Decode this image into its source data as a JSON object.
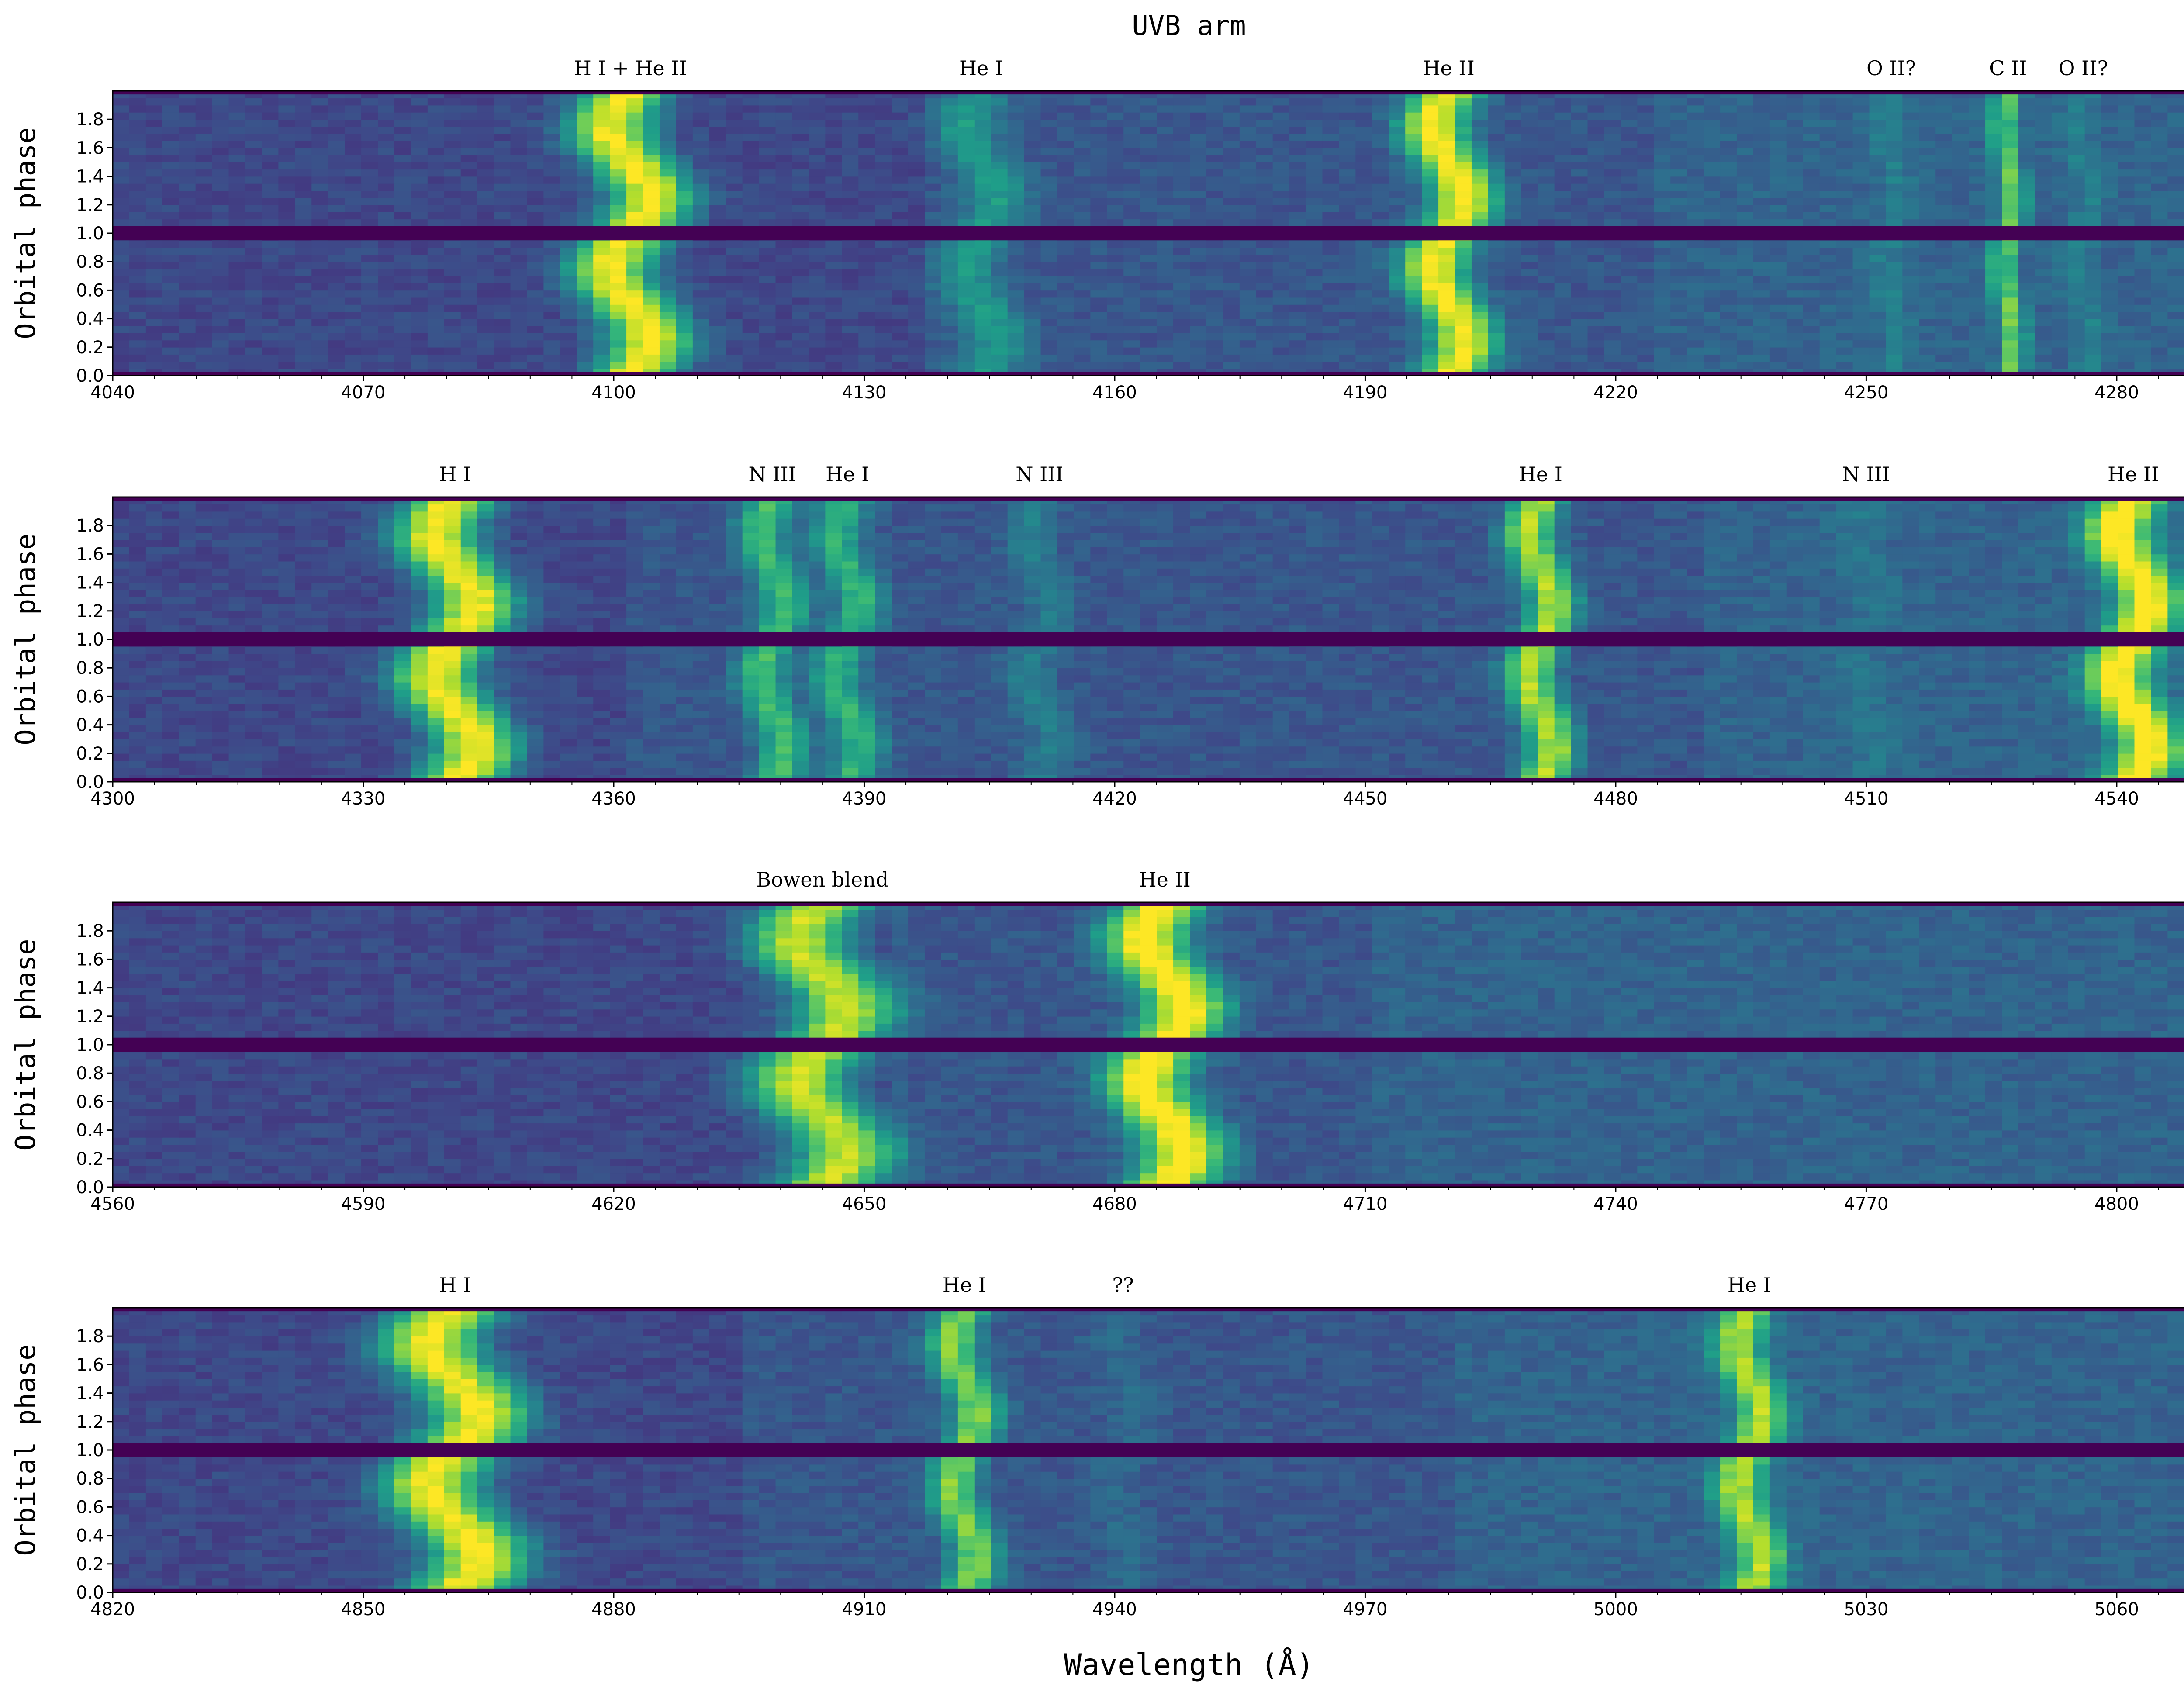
{
  "figure": {
    "title": "UVB arm",
    "xlabel": "Wavelength (Å)",
    "ylabel": "Orbital phase"
  },
  "colors": {
    "colormap": "viridis",
    "background": "#ffffff",
    "gap_band": "#440154"
  },
  "chart_data": [
    {
      "type": "heatmap",
      "xlim": [
        4040,
        4298
      ],
      "ylim": [
        0.0,
        2.0
      ],
      "xticks": [
        "4040",
        "4070",
        "4100",
        "4130",
        "4160",
        "4190",
        "4220",
        "4250",
        "4280"
      ],
      "yticks": [
        "0.0",
        "0.2",
        "0.4",
        "0.6",
        "0.8",
        "1.0",
        "1.2",
        "1.4",
        "1.6",
        "1.8"
      ],
      "segment_breaks": [
        4137,
        4225
      ],
      "lines": [
        {
          "label": "H I + He II",
          "x": 4102,
          "strength": 1.0,
          "width": 5
        },
        {
          "label": "He I",
          "x": 4144,
          "strength": 0.35,
          "width": 4
        },
        {
          "label": "He II",
          "x": 4200,
          "strength": 0.95,
          "width": 4
        },
        {
          "label": "O II?",
          "x": 4253,
          "strength": 0.15,
          "width": 2
        },
        {
          "label": "C II",
          "x": 4267,
          "strength": 0.6,
          "width": 1.5
        },
        {
          "label": "O II?",
          "x": 4276,
          "strength": 0.15,
          "width": 2
        }
      ]
    },
    {
      "type": "heatmap",
      "xlim": [
        4300,
        4558
      ],
      "ylim": [
        0.0,
        2.0
      ],
      "xticks": [
        "4300",
        "4330",
        "4360",
        "4390",
        "4420",
        "4450",
        "4480",
        "4510",
        "4540"
      ],
      "yticks": [
        "0.0",
        "0.2",
        "0.4",
        "0.6",
        "0.8",
        "1.0",
        "1.2",
        "1.4",
        "1.6",
        "1.8"
      ],
      "segment_breaks": [
        4362,
        4491
      ],
      "lines": [
        {
          "label": "H I",
          "x": 4341,
          "strength": 1.0,
          "width": 5
        },
        {
          "label": "N III",
          "x": 4379,
          "strength": 0.55,
          "width": 3
        },
        {
          "label": "He I",
          "x": 4388,
          "strength": 0.5,
          "width": 3
        },
        {
          "label": "N III",
          "x": 4411,
          "strength": 0.2,
          "width": 3
        },
        {
          "label": "He I",
          "x": 4471,
          "strength": 0.8,
          "width": 3
        },
        {
          "label": "N III",
          "x": 4510,
          "strength": 0.1,
          "width": 3
        },
        {
          "label": "He II",
          "x": 4542,
          "strength": 0.95,
          "width": 4
        }
      ]
    },
    {
      "type": "heatmap",
      "xlim": [
        4560,
        4818
      ],
      "ylim": [
        0.0,
        2.0
      ],
      "xticks": [
        "4560",
        "4590",
        "4620",
        "4650",
        "4680",
        "4710",
        "4740",
        "4770",
        "4800"
      ],
      "yticks": [
        "0.0",
        "0.2",
        "0.4",
        "0.6",
        "0.8",
        "1.0",
        "1.2",
        "1.4",
        "1.6",
        "1.8"
      ],
      "segment_breaks": [
        4654,
        4710
      ],
      "lines": [
        {
          "label": "Bowen blend",
          "x": 4645,
          "strength": 0.9,
          "width": 6
        },
        {
          "label": "He II",
          "x": 4686,
          "strength": 1.0,
          "width": 5
        }
      ]
    },
    {
      "type": "heatmap",
      "xlim": [
        4820,
        5078
      ],
      "ylim": [
        0.0,
        2.0
      ],
      "xticks": [
        "4820",
        "4850",
        "4880",
        "4910",
        "4940",
        "4970",
        "5000",
        "5030",
        "5060"
      ],
      "yticks": [
        "0.0",
        "0.2",
        "0.4",
        "0.6",
        "0.8",
        "1.0",
        "1.2",
        "1.4",
        "1.6",
        "1.8"
      ],
      "segment_breaks": [
        4895,
        4980
      ],
      "lines": [
        {
          "label": "H I",
          "x": 4861,
          "strength": 1.0,
          "width": 6
        },
        {
          "label": "He I",
          "x": 4922,
          "strength": 0.7,
          "width": 3
        },
        {
          "label": "??",
          "x": 4941,
          "strength": 0.1,
          "width": 3
        },
        {
          "label": "He I",
          "x": 5016,
          "strength": 0.75,
          "width": 3
        }
      ]
    }
  ]
}
